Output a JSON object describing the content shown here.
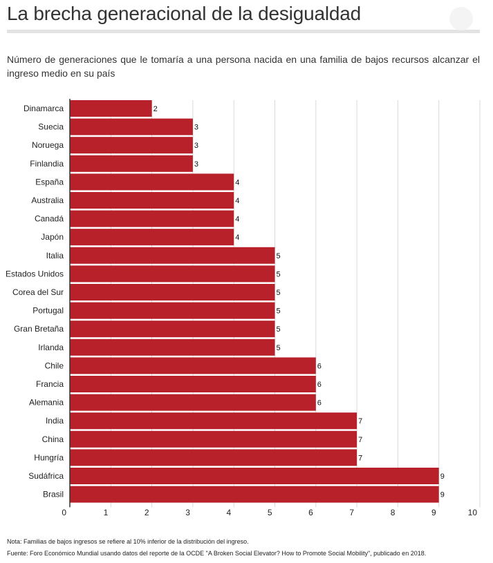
{
  "header": {
    "title": "La brecha generacional de la desigualdad",
    "subtitle": "Número de generaciones que le tomaría a una persona nacida en una familia de bajos recursos alcanzar el ingreso medio en su país"
  },
  "footer": {
    "note": "Nota: Familias de bajos ingresos se refiere al 10% inferior de la distribución del ingreso.",
    "source": "Fuente: Foro Económico Mundial usando datos del reporte de la OCDE \"A Broken Social Elevator? How to Promote Social Mobility\", publicado en 2018."
  },
  "colors": {
    "bar": "#b8202a",
    "grid": "#d9d9d9",
    "axis": "#333333"
  },
  "chart_data": {
    "type": "bar",
    "orientation": "horizontal",
    "title": "La brecha generacional de la desigualdad",
    "categories": [
      "Dinamarca",
      "Suecia",
      "Noruega",
      "Finlandia",
      "España",
      "Australia",
      "Canadá",
      "Japón",
      "Italia",
      "Estados Unidos",
      "Corea del Sur",
      "Portugal",
      "Gran Bretaña",
      "Irlanda",
      "Chile",
      "Francia",
      "Alemania",
      "India",
      "China",
      "Hungría",
      "Sudáfrica",
      "Brasil"
    ],
    "values": [
      2,
      3,
      3,
      3,
      4,
      4,
      4,
      4,
      5,
      5,
      5,
      5,
      5,
      5,
      6,
      6,
      6,
      7,
      7,
      7,
      9,
      9
    ],
    "xlim": [
      0,
      10
    ],
    "xticks": [
      0,
      1,
      2,
      3,
      4,
      5,
      6,
      7,
      8,
      9,
      10
    ],
    "grid": true,
    "data_labels": true
  }
}
